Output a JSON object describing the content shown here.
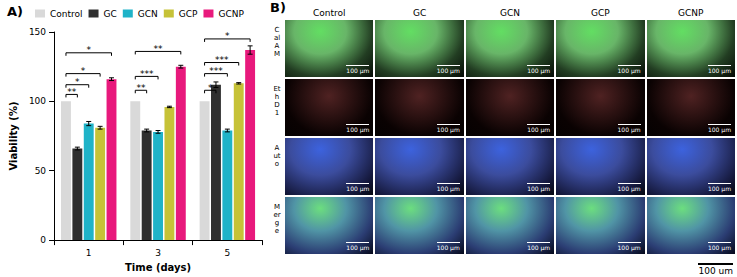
{
  "chart_data": {
    "type": "bar",
    "panel_label": "A)",
    "x_label": "Time (days)",
    "y_label": "Viability (%)",
    "categories": [
      "1",
      "3",
      "5"
    ],
    "series": [
      {
        "name": "Control",
        "color": "#d9d9d9",
        "values": [
          100,
          100,
          100
        ],
        "errors": [
          0,
          0,
          0
        ]
      },
      {
        "name": "GC",
        "color": "#2f2f2f",
        "values": [
          66,
          79,
          112
        ],
        "errors": [
          1,
          1,
          2
        ]
      },
      {
        "name": "GCN",
        "color": "#1fb3c8",
        "values": [
          84,
          78,
          79
        ],
        "errors": [
          1.5,
          1,
          1
        ]
      },
      {
        "name": "GCP",
        "color": "#c6c237",
        "values": [
          81,
          96,
          113
        ],
        "errors": [
          1,
          0.5,
          0.5
        ]
      },
      {
        "name": "GCNP",
        "color": "#e8197c",
        "values": [
          116,
          125,
          137
        ],
        "errors": [
          1,
          1,
          3
        ]
      }
    ],
    "significance": [
      {
        "category": "1",
        "from": "Control",
        "to": "GC",
        "y": 105,
        "label": "**"
      },
      {
        "category": "1",
        "from": "Control",
        "to": "GCN",
        "y": 112,
        "label": "*"
      },
      {
        "category": "1",
        "from": "Control",
        "to": "GCP",
        "y": 120,
        "label": "*"
      },
      {
        "category": "1",
        "from": "Control",
        "to": "GCNP",
        "y": 135,
        "label": "*"
      },
      {
        "category": "3",
        "from": "Control",
        "to": "GC",
        "y": 108,
        "label": "**"
      },
      {
        "category": "3",
        "from": "Control",
        "to": "GCN",
        "y": 118,
        "label": "***"
      },
      {
        "category": "3",
        "from": "Control",
        "to": "GCNP",
        "y": 136,
        "label": "**"
      },
      {
        "category": "5",
        "from": "Control",
        "to": "GC",
        "y": 108,
        "label": "*"
      },
      {
        "category": "5",
        "from": "Control",
        "to": "GCN",
        "y": 120,
        "label": "***"
      },
      {
        "category": "5",
        "from": "Control",
        "to": "GCP",
        "y": 128,
        "label": "***"
      },
      {
        "category": "5",
        "from": "Control",
        "to": "GCNP",
        "y": 145,
        "label": "*"
      }
    ],
    "ylim": [
      0,
      150
    ],
    "yticks": [
      0,
      50,
      100,
      150
    ],
    "grid": false,
    "legend": "top"
  },
  "image_panel": {
    "panel_label": "B)",
    "columns": [
      "Control",
      "GC",
      "GCN",
      "GCP",
      "GCNP"
    ],
    "rows": [
      "CalAM",
      "EthD1",
      "Auto",
      "Merge"
    ],
    "scale_label": "100 µm",
    "footer_scale": "100 um"
  }
}
